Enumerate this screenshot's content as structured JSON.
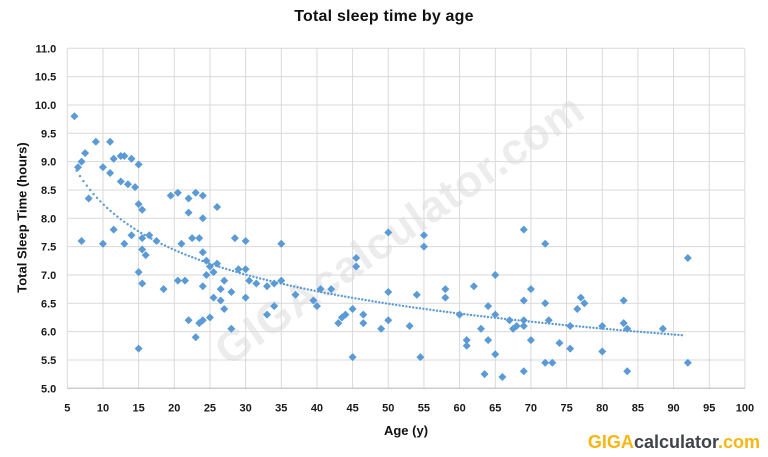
{
  "title": "Total sleep time by age",
  "watermark_text": "GIGAcalculator.com",
  "logo": {
    "part1": "GIGA",
    "part2": "calculator",
    "part3": ".com"
  },
  "colors": {
    "marker": "#5B9BD5",
    "trendline": "#5B9BD5",
    "grid": "#D9D9D9",
    "axis_line": "#BFBFBF",
    "tick_text": "#1a1a1a",
    "logo_yellow": "#F8B611",
    "logo_dark": "#3F434A"
  },
  "chart_data": {
    "type": "scatter",
    "title": "Total sleep time by age",
    "xlabel": "Age (y)",
    "ylabel": "Total Sleep Time (hours)",
    "xlim": [
      5,
      100
    ],
    "ylim": [
      5.0,
      11.0
    ],
    "x_ticks": [
      "5",
      "10",
      "15",
      "20",
      "25",
      "30",
      "35",
      "40",
      "45",
      "50",
      "55",
      "60",
      "65",
      "70",
      "75",
      "80",
      "85",
      "90",
      "95",
      "100"
    ],
    "y_ticks": [
      "5.0",
      "5.5",
      "6.0",
      "6.5",
      "7.0",
      "7.5",
      "8.0",
      "8.5",
      "9.0",
      "9.5",
      "10.0",
      "10.5",
      "11.0"
    ],
    "grid": true,
    "legend": false,
    "marker": {
      "shape": "diamond",
      "color": "#5B9BD5",
      "size": 8
    },
    "points": [
      [
        6,
        9.8
      ],
      [
        7.5,
        9.15
      ],
      [
        7,
        9.0
      ],
      [
        6.5,
        8.9
      ],
      [
        9,
        9.35
      ],
      [
        11,
        9.35
      ],
      [
        11.5,
        9.05
      ],
      [
        12.5,
        9.1
      ],
      [
        13,
        9.1
      ],
      [
        14,
        9.05
      ],
      [
        15,
        8.95
      ],
      [
        10,
        8.9
      ],
      [
        11,
        8.8
      ],
      [
        12.5,
        8.65
      ],
      [
        13.5,
        8.6
      ],
      [
        14.5,
        8.55
      ],
      [
        8,
        8.35
      ],
      [
        15,
        8.25
      ],
      [
        15.5,
        8.15
      ],
      [
        11.5,
        7.8
      ],
      [
        13,
        7.55
      ],
      [
        14,
        7.7
      ],
      [
        10,
        7.55
      ],
      [
        7,
        7.6
      ],
      [
        15.5,
        7.65
      ],
      [
        16.5,
        7.7
      ],
      [
        17.5,
        7.6
      ],
      [
        15.5,
        7.45
      ],
      [
        16,
        7.35
      ],
      [
        15,
        7.05
      ],
      [
        15.5,
        6.85
      ],
      [
        18.5,
        6.75
      ],
      [
        15,
        5.7
      ],
      [
        19.5,
        8.4
      ],
      [
        20.5,
        8.45
      ],
      [
        22,
        8.35
      ],
      [
        23,
        8.45
      ],
      [
        24,
        8.4
      ],
      [
        22,
        8.1
      ],
      [
        24,
        8.0
      ],
      [
        26,
        8.2
      ],
      [
        21,
        7.55
      ],
      [
        22.5,
        7.65
      ],
      [
        23.5,
        7.65
      ],
      [
        24,
        7.4
      ],
      [
        24.5,
        7.25
      ],
      [
        25,
        7.15
      ],
      [
        24.5,
        7.0
      ],
      [
        25.5,
        7.05
      ],
      [
        26,
        7.2
      ],
      [
        20.5,
        6.9
      ],
      [
        21.5,
        6.9
      ],
      [
        24,
        6.8
      ],
      [
        25.5,
        6.6
      ],
      [
        27,
        6.9
      ],
      [
        26.5,
        6.75
      ],
      [
        28,
        6.7
      ],
      [
        30,
        6.6
      ],
      [
        26.5,
        6.55
      ],
      [
        27,
        6.4
      ],
      [
        28,
        6.05
      ],
      [
        22,
        6.2
      ],
      [
        23.5,
        6.15
      ],
      [
        24,
        6.2
      ],
      [
        25,
        6.25
      ],
      [
        23,
        5.9
      ],
      [
        28.5,
        7.65
      ],
      [
        30,
        7.6
      ],
      [
        35,
        7.55
      ],
      [
        29,
        7.1
      ],
      [
        30,
        7.1
      ],
      [
        30.5,
        6.9
      ],
      [
        31.5,
        6.85
      ],
      [
        33,
        6.8
      ],
      [
        34,
        6.85
      ],
      [
        35,
        6.9
      ],
      [
        33,
        6.3
      ],
      [
        34,
        6.45
      ],
      [
        37,
        6.65
      ],
      [
        39.5,
        6.55
      ],
      [
        40,
        6.45
      ],
      [
        40.5,
        6.75
      ],
      [
        42,
        6.75
      ],
      [
        43,
        6.15
      ],
      [
        43.5,
        6.25
      ],
      [
        44,
        6.3
      ],
      [
        45,
        6.4
      ],
      [
        45.5,
        7.3
      ],
      [
        45.5,
        7.15
      ],
      [
        45,
        5.55
      ],
      [
        46.5,
        6.3
      ],
      [
        46.5,
        6.15
      ],
      [
        49,
        6.05
      ],
      [
        50,
        7.75
      ],
      [
        50,
        6.7
      ],
      [
        50,
        6.2
      ],
      [
        53,
        6.1
      ],
      [
        54,
        6.65
      ],
      [
        54.5,
        5.55
      ],
      [
        55,
        7.7
      ],
      [
        55,
        7.5
      ],
      [
        58,
        6.75
      ],
      [
        58,
        6.6
      ],
      [
        60,
        6.3
      ],
      [
        61,
        5.85
      ],
      [
        61,
        5.75
      ],
      [
        62,
        6.8
      ],
      [
        63,
        6.05
      ],
      [
        63.5,
        5.25
      ],
      [
        64,
        6.45
      ],
      [
        65,
        6.3
      ],
      [
        65,
        7.0
      ],
      [
        65,
        5.6
      ],
      [
        66,
        5.2
      ],
      [
        64,
        5.85
      ],
      [
        67,
        6.2
      ],
      [
        67.5,
        6.05
      ],
      [
        68,
        6.1
      ],
      [
        69,
        6.2
      ],
      [
        69,
        6.1
      ],
      [
        69,
        7.8
      ],
      [
        69,
        6.55
      ],
      [
        69,
        5.3
      ],
      [
        70,
        6.75
      ],
      [
        70,
        5.85
      ],
      [
        72,
        7.55
      ],
      [
        72,
        6.5
      ],
      [
        72.5,
        6.2
      ],
      [
        72,
        5.45
      ],
      [
        73,
        5.45
      ],
      [
        74,
        5.8
      ],
      [
        75.5,
        6.1
      ],
      [
        75.5,
        5.7
      ],
      [
        76.5,
        6.4
      ],
      [
        77,
        6.6
      ],
      [
        77.5,
        6.5
      ],
      [
        80,
        6.1
      ],
      [
        80,
        5.65
      ],
      [
        83,
        6.55
      ],
      [
        83,
        6.15
      ],
      [
        83.5,
        6.05
      ],
      [
        83.5,
        5.3
      ],
      [
        88.5,
        6.05
      ],
      [
        92,
        7.3
      ],
      [
        92,
        5.45
      ]
    ],
    "trendline": {
      "style": "dotted",
      "color": "#5B9BD5",
      "model": "power",
      "equation": "y = 11.63 * x^-0.149",
      "coefficient": 11.63,
      "exponent": -0.149,
      "x_start": 6.3,
      "x_end": 91.5
    }
  }
}
